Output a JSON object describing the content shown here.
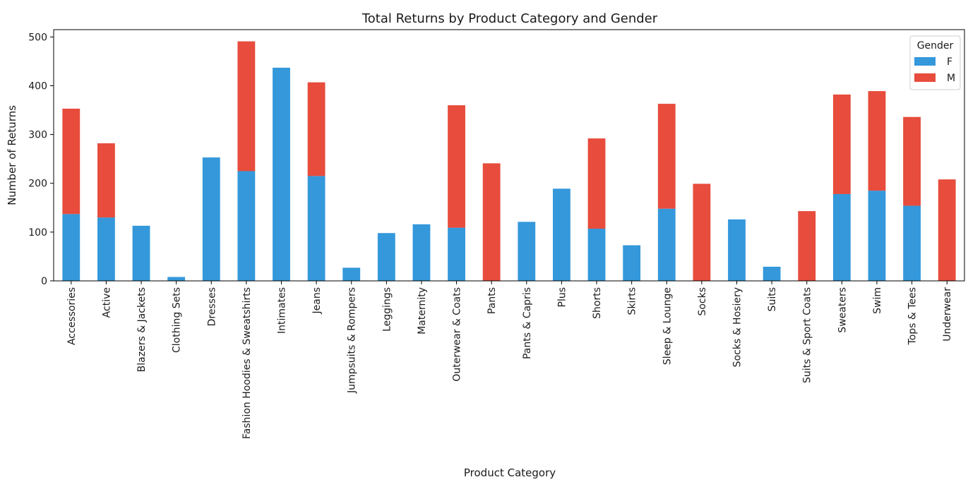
{
  "chart_data": {
    "type": "bar",
    "stacked": true,
    "title": "Total Returns by Product Category and Gender",
    "xlabel": "Product Category",
    "ylabel": "Number of Returns",
    "ylim": [
      0,
      515
    ],
    "yticks": [
      0,
      100,
      200,
      300,
      400,
      500
    ],
    "grid": false,
    "legend": {
      "title": "Gender",
      "placement": "top-right"
    },
    "categories": [
      "Accessories",
      "Active",
      "Blazers & Jackets",
      "Clothing Sets",
      "Dresses",
      "Fashion Hoodies & Sweatshirts",
      "Intimates",
      "Jeans",
      "Jumpsuits & Rompers",
      "Leggings",
      "Maternity",
      "Outerwear & Coats",
      "Pants",
      "Pants & Capris",
      "Plus",
      "Shorts",
      "Skirts",
      "Sleep & Lounge",
      "Socks",
      "Socks & Hosiery",
      "Suits",
      "Suits & Sport Coats",
      "Sweaters",
      "Swim",
      "Tops & Tees",
      "Underwear"
    ],
    "series": [
      {
        "name": "F",
        "color": "#3498db",
        "values": [
          137,
          130,
          113,
          8,
          253,
          225,
          437,
          215,
          27,
          98,
          116,
          109,
          0,
          121,
          189,
          107,
          73,
          148,
          0,
          126,
          29,
          0,
          178,
          185,
          154,
          0
        ]
      },
      {
        "name": "M",
        "color": "#e74c3c",
        "values": [
          216,
          152,
          0,
          0,
          0,
          266,
          0,
          192,
          0,
          0,
          0,
          251,
          241,
          0,
          0,
          185,
          0,
          215,
          199,
          0,
          0,
          143,
          204,
          204,
          182,
          208
        ]
      }
    ]
  }
}
